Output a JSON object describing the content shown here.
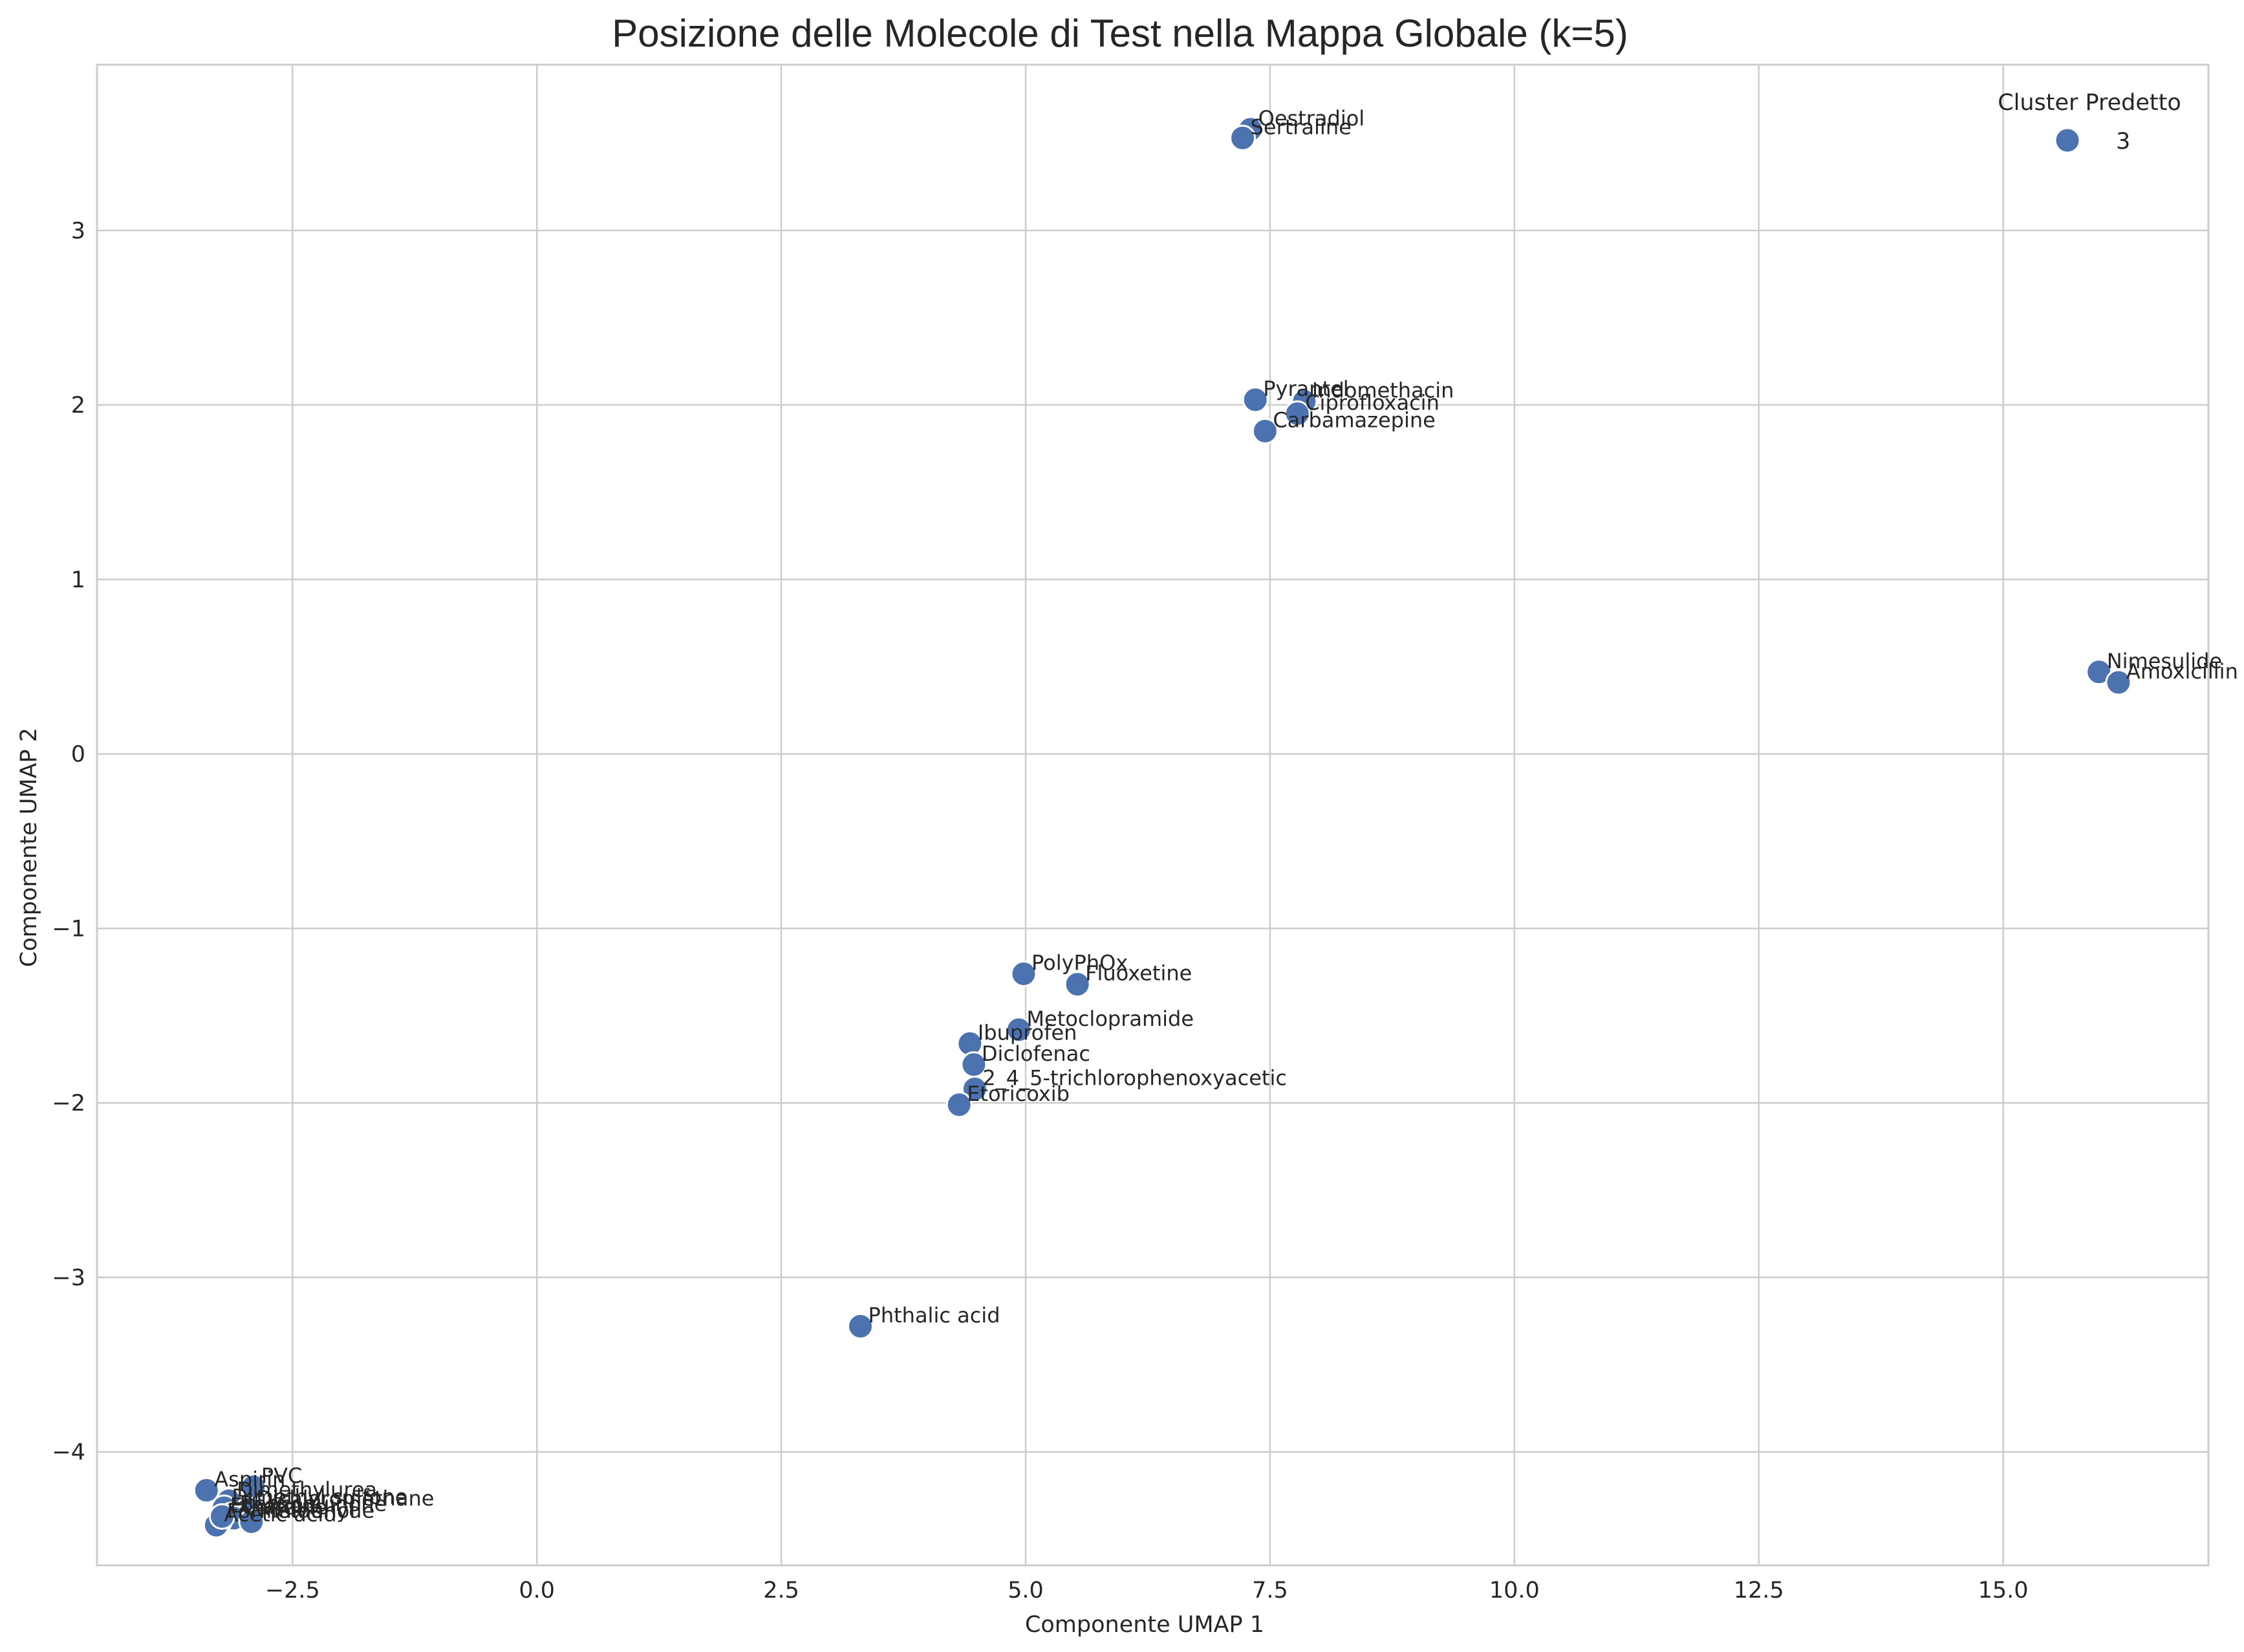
{
  "chart_data": {
    "type": "scatter",
    "title": "Posizione delle Molecole di Test nella Mappa Globale (k=5)",
    "xlabel": "Componente UMAP 1",
    "ylabel": "Componente UMAP 2",
    "xlim": [
      -4.5,
      17.1
    ],
    "ylim": [
      -4.65,
      3.95
    ],
    "x_ticks": [
      -2.5,
      0.0,
      2.5,
      5.0,
      7.5,
      10.0,
      12.5,
      15.0
    ],
    "x_tick_labels": [
      "−2.5",
      "0.0",
      "2.5",
      "5.0",
      "7.5",
      "10.0",
      "12.5",
      "15.0"
    ],
    "y_ticks": [
      -4,
      -3,
      -2,
      -1,
      0,
      1,
      2,
      3
    ],
    "y_tick_labels": [
      "−4",
      "−3",
      "−2",
      "−1",
      "0",
      "1",
      "2",
      "3"
    ],
    "grid": true,
    "legend": {
      "title": "Cluster Predetto",
      "entries": [
        "3"
      ],
      "placement": "top-right"
    },
    "series": [
      {
        "name": "3",
        "color": "#4c72b0",
        "points": [
          {
            "label": "Oestradiol",
            "x": 7.3,
            "y": 3.58
          },
          {
            "label": "Sertraline",
            "x": 7.22,
            "y": 3.53
          },
          {
            "label": "Pyrantel",
            "x": 7.35,
            "y": 2.03
          },
          {
            "label": "Indomethacin",
            "x": 7.85,
            "y": 2.02
          },
          {
            "label": "Ciprofloxacin",
            "x": 7.78,
            "y": 1.95
          },
          {
            "label": "Carbamazepine",
            "x": 7.45,
            "y": 1.85
          },
          {
            "label": "Nimesulide",
            "x": 15.98,
            "y": 0.47
          },
          {
            "label": "Amoxicillin",
            "x": 16.18,
            "y": 0.41
          },
          {
            "label": "PolyPhOx",
            "x": 4.98,
            "y": -1.26
          },
          {
            "label": "Fluoxetine",
            "x": 5.53,
            "y": -1.32
          },
          {
            "label": "Metoclopramide",
            "x": 4.93,
            "y": -1.58
          },
          {
            "label": "Ibuprofen",
            "x": 4.43,
            "y": -1.66
          },
          {
            "label": "Diclofenac",
            "x": 4.47,
            "y": -1.78
          },
          {
            "label": "2_4_5-trichlorophenoxyacetic",
            "x": 4.48,
            "y": -1.92
          },
          {
            "label": "Etoricoxib",
            "x": 4.32,
            "y": -2.01
          },
          {
            "label": "Phthalic acid",
            "x": 3.31,
            "y": -3.28
          },
          {
            "label": "PVC",
            "x": -2.9,
            "y": -4.2
          },
          {
            "label": "Aspirin",
            "x": -3.38,
            "y": -4.22
          },
          {
            "label": "Dimethylurea",
            "x": -3.15,
            "y": -4.28
          },
          {
            "label": "Dimethyl sulfone",
            "x": -3.2,
            "y": -4.32
          },
          {
            "label": "Dichloromethane",
            "x": -2.95,
            "y": -4.33
          },
          {
            "label": "Benzoquinone",
            "x": -3.12,
            "y": -4.36
          },
          {
            "label": "Caffeine",
            "x": -3.1,
            "y": -4.38
          },
          {
            "label": "Formaldehyde",
            "x": -3.25,
            "y": -4.4
          },
          {
            "label": "Acetic acid",
            "x": -3.28,
            "y": -4.42
          },
          {
            "label": "Methanol",
            "x": -2.92,
            "y": -4.4
          },
          {
            "label": "Ethanol",
            "x": -3.22,
            "y": -4.37
          }
        ]
      }
    ]
  }
}
